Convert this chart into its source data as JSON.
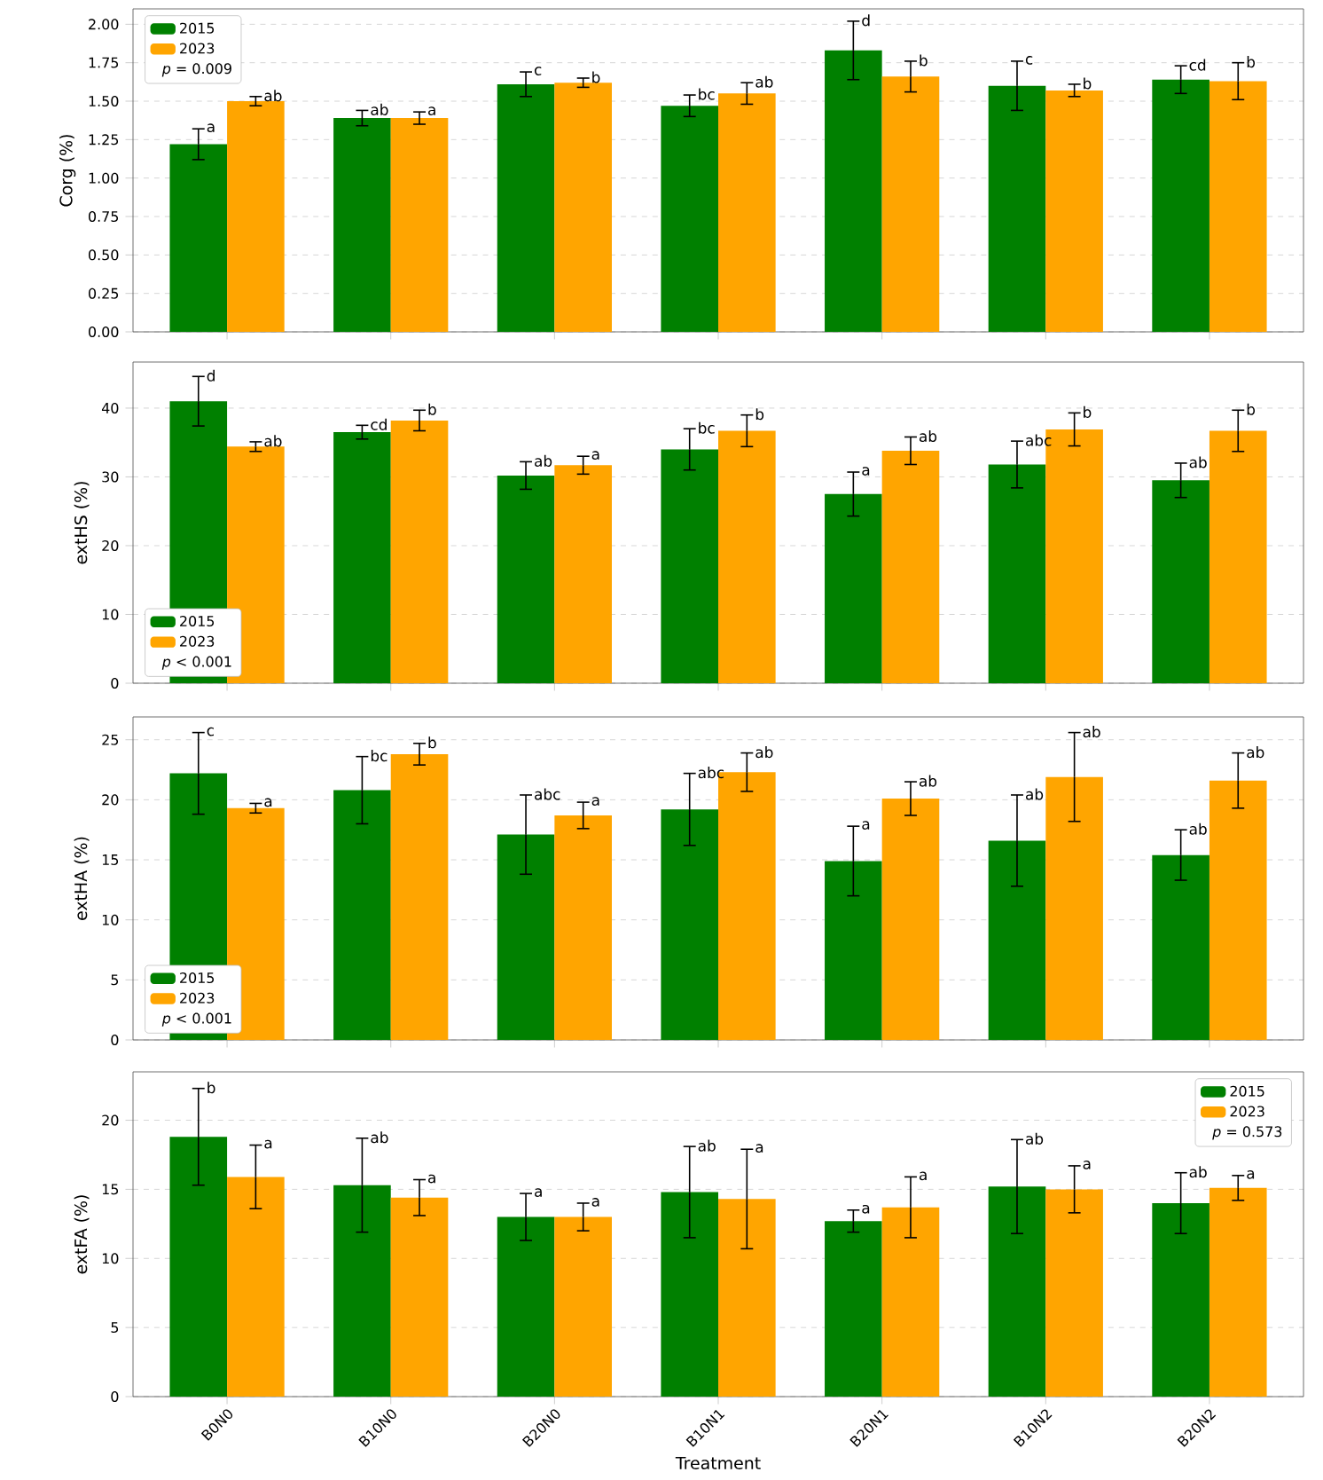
{
  "chart_data": [
    {
      "type": "bar",
      "ylabel": "Corg (%)",
      "categories": [
        null,
        null,
        null,
        null,
        null,
        null,
        null
      ],
      "ylim": [
        0,
        2.1
      ],
      "yticks": [
        {
          "value": 0,
          "label": "0.00"
        },
        {
          "value": 0.25,
          "label": "0.25"
        },
        {
          "value": 0.5,
          "label": "0.50"
        },
        {
          "value": 0.75,
          "label": "0.75"
        },
        {
          "value": 1,
          "label": "1.00"
        },
        {
          "value": 1.25,
          "label": "1.25"
        },
        {
          "value": 1.5,
          "label": "1.50"
        },
        {
          "value": 1.75,
          "label": "1.75"
        },
        {
          "value": 2,
          "label": "2.00"
        }
      ],
      "grid": "y",
      "legend": "top left",
      "tick_labels": "y",
      "annotations": [
        "*p* = 0.009"
      ],
      "series": [
        {
          "name": "2015",
          "color": "#008000",
          "values": [
            1.22,
            1.39,
            1.61,
            1.47,
            1.83,
            1.6,
            1.64
          ],
          "errors": [
            0.1,
            0.05,
            0.08,
            0.07,
            0.19,
            0.16,
            0.09
          ],
          "value_labels": [
            "a",
            "ab",
            "c",
            "bc",
            "d",
            "c",
            "cd"
          ]
        },
        {
          "name": "2023",
          "color": "#ffa500",
          "values": [
            1.5,
            1.39,
            1.62,
            1.55,
            1.66,
            1.57,
            1.63
          ],
          "errors": [
            0.03,
            0.04,
            0.03,
            0.07,
            0.1,
            0.04,
            0.12
          ],
          "value_labels": [
            "ab",
            "a",
            "b",
            "ab",
            "b",
            "b",
            "b"
          ]
        }
      ]
    },
    {
      "type": "bar",
      "ylabel": "extHS (%)",
      "categories": [
        null,
        null,
        null,
        null,
        null,
        null,
        null
      ],
      "ylim": [
        0,
        46.7
      ],
      "yticks": [
        0,
        10,
        20,
        30,
        40
      ],
      "grid": "y",
      "legend": "bottom left",
      "tick_labels": "y",
      "annotations": [
        "*p* < 0.001"
      ],
      "series": [
        {
          "name": "2015",
          "color": "#008000",
          "values": [
            41.0,
            36.5,
            30.2,
            34.0,
            27.5,
            31.8,
            29.5
          ],
          "errors": [
            3.6,
            1.0,
            2.0,
            3.0,
            3.2,
            3.4,
            2.5
          ],
          "value_labels": [
            "d",
            "cd",
            "ab",
            "bc",
            "a",
            "abc",
            "ab"
          ]
        },
        {
          "name": "2023",
          "color": "#ffa500",
          "values": [
            34.4,
            38.2,
            31.7,
            36.7,
            33.8,
            36.9,
            36.7
          ],
          "errors": [
            0.7,
            1.5,
            1.3,
            2.3,
            2.0,
            2.4,
            3.0
          ],
          "value_labels": [
            "ab",
            "b",
            "a",
            "b",
            "ab",
            "b",
            "b"
          ]
        }
      ]
    },
    {
      "type": "bar",
      "ylabel": "extHA (%)",
      "categories": [
        null,
        null,
        null,
        null,
        null,
        null,
        null
      ],
      "ylim": [
        0,
        26.9
      ],
      "yticks": [
        0,
        5,
        10,
        15,
        20,
        25
      ],
      "grid": "y",
      "legend": "bottom left",
      "tick_labels": "y",
      "annotations": [
        "*p* < 0.001"
      ],
      "series": [
        {
          "name": "2015",
          "color": "#008000",
          "values": [
            22.2,
            20.8,
            17.1,
            19.2,
            14.9,
            16.6,
            15.4
          ],
          "errors": [
            3.4,
            2.8,
            3.3,
            3.0,
            2.9,
            3.8,
            2.1
          ],
          "value_labels": [
            "c",
            "bc",
            "abc",
            "abc",
            "a",
            "ab",
            "ab"
          ]
        },
        {
          "name": "2023",
          "color": "#ffa500",
          "values": [
            19.3,
            23.8,
            18.7,
            22.3,
            20.1,
            21.9,
            21.6
          ],
          "errors": [
            0.4,
            0.9,
            1.1,
            1.6,
            1.4,
            3.7,
            2.3
          ],
          "value_labels": [
            "a",
            "b",
            "a",
            "ab",
            "ab",
            "ab",
            "ab"
          ]
        }
      ]
    },
    {
      "type": "bar",
      "ylabel": "extFA (%)",
      "xlabel": "Treatment",
      "categories": [
        "B0N0",
        "B10N0",
        "B20N0",
        "B10N1",
        "B20N1",
        "B10N2",
        "B20N2"
      ],
      "ylim": [
        0,
        23.5
      ],
      "yticks": [
        0,
        5,
        10,
        15,
        20
      ],
      "grid": "y",
      "legend": "top right",
      "annotations": [
        "*p* = 0.573"
      ],
      "series": [
        {
          "name": "2015",
          "color": "#008000",
          "values": [
            18.8,
            15.3,
            13.0,
            14.8,
            12.7,
            15.2,
            14.0
          ],
          "errors": [
            3.5,
            3.4,
            1.7,
            3.3,
            0.8,
            3.4,
            2.2
          ],
          "value_labels": [
            "b",
            "ab",
            "a",
            "ab",
            "a",
            "ab",
            "ab"
          ]
        },
        {
          "name": "2023",
          "color": "#ffa500",
          "values": [
            15.9,
            14.4,
            13.0,
            14.3,
            13.7,
            15.0,
            15.1
          ],
          "errors": [
            2.3,
            1.3,
            1.0,
            3.6,
            2.2,
            1.7,
            0.9
          ],
          "value_labels": [
            "a",
            "a",
            "a",
            "a",
            "a",
            "a",
            "a"
          ]
        }
      ]
    }
  ]
}
